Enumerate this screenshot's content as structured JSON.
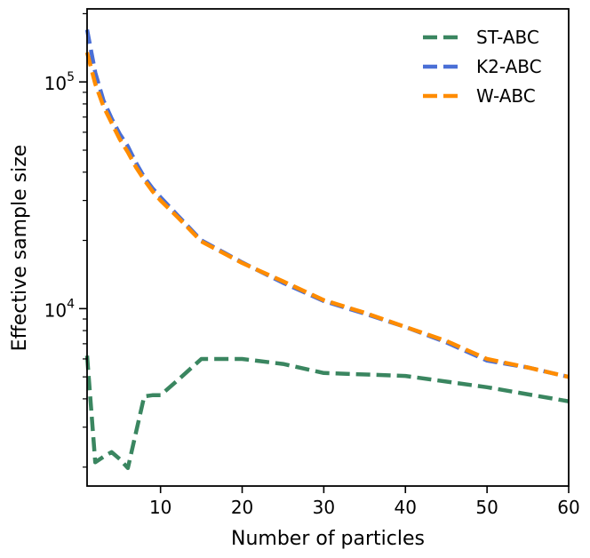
{
  "chart_data": {
    "type": "line",
    "title": "",
    "xlabel": "Number of particles",
    "ylabel": "Effective sample size",
    "xlim": [
      1,
      60
    ],
    "ylim": [
      1650,
      210000
    ],
    "yscale": "log",
    "x_ticks": [
      10,
      20,
      30,
      40,
      50,
      60
    ],
    "x_tick_labels": [
      "10",
      "20",
      "30",
      "40",
      "50",
      "60"
    ],
    "y_ticks": [
      10000,
      100000
    ],
    "y_tick_labels": [
      {
        "base": "10",
        "exp": "4"
      },
      {
        "base": "10",
        "exp": "5"
      }
    ],
    "grid": false,
    "legend_position": "top-right",
    "series": [
      {
        "name": "ST-ABC",
        "color": "#3a8660",
        "x": [
          1,
          2,
          3,
          4,
          5,
          6,
          7,
          8,
          9,
          10,
          12,
          15,
          20,
          25,
          30,
          40,
          50,
          60
        ],
        "y": [
          6200,
          2100,
          2220,
          2330,
          2170,
          1980,
          2850,
          4100,
          4150,
          4150,
          4800,
          6000,
          6000,
          5700,
          5200,
          5050,
          4500,
          3900
        ]
      },
      {
        "name": "K2-ABC",
        "color": "#4a6fd6",
        "x": [
          1,
          2,
          3,
          4,
          5,
          6,
          7,
          8,
          9,
          10,
          12,
          15,
          20,
          25,
          30,
          35,
          40,
          45,
          50,
          55,
          60
        ],
        "y": [
          170000,
          110000,
          83000,
          69000,
          59000,
          52000,
          44000,
          38000,
          34000,
          31000,
          26000,
          20000,
          16000,
          13000,
          10800,
          9500,
          8300,
          7100,
          5900,
          5500,
          5000
        ]
      },
      {
        "name": "W-ABC",
        "color": "#ff8c00",
        "x": [
          1,
          2,
          3,
          4,
          5,
          6,
          7,
          8,
          9,
          10,
          12,
          15,
          20,
          25,
          30,
          35,
          40,
          45,
          50,
          55,
          60
        ],
        "y": [
          135000,
          98000,
          78000,
          66000,
          56000,
          49000,
          42000,
          37000,
          33000,
          30000,
          25500,
          19800,
          15900,
          13200,
          10900,
          9600,
          8300,
          7200,
          6000,
          5500,
          5000
        ]
      }
    ]
  }
}
